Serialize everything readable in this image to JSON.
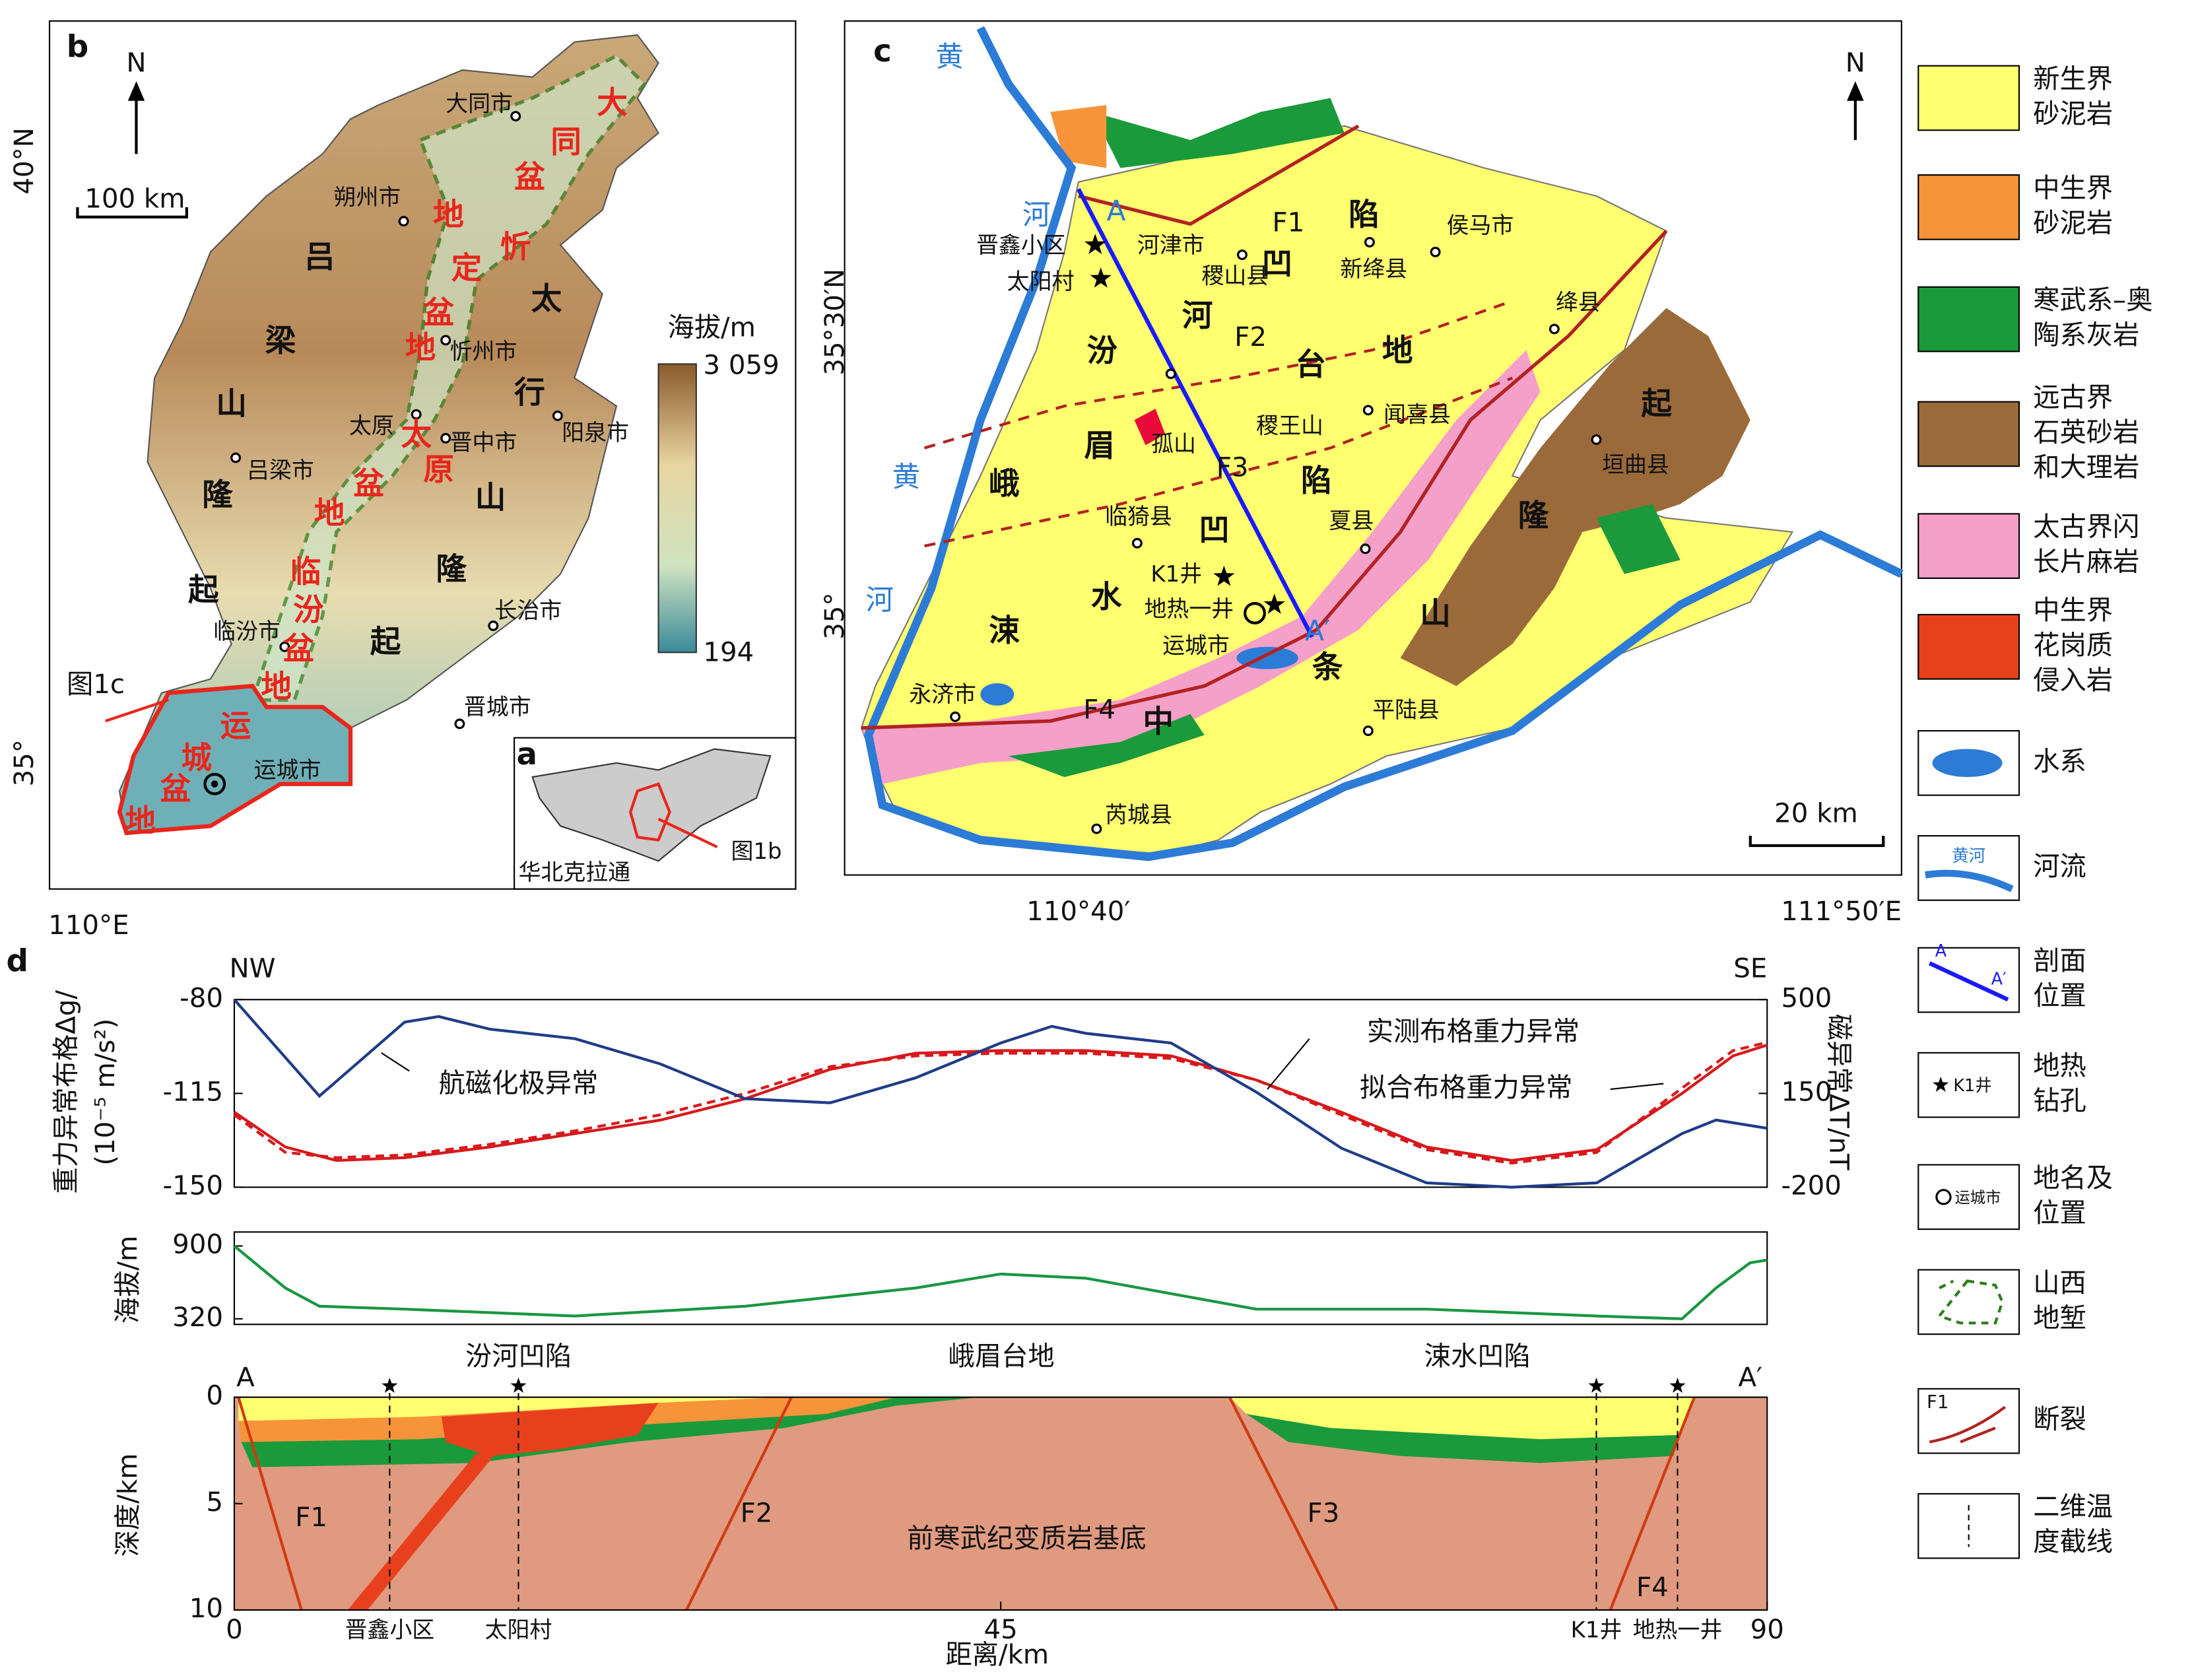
{
  "panel_b": {
    "label": "b",
    "north": "N",
    "scale": "100 km",
    "lat": [
      "40°N",
      "35°"
    ],
    "lon": "110°E",
    "colorbar": {
      "title": "海拔/m",
      "max": "3 059",
      "min": "194"
    },
    "fig_ref": "图1c",
    "places": [
      "大同市",
      "朔州市",
      "忻州市",
      "太原",
      "阳泉市",
      "晋中市",
      "吕梁市",
      "临汾市",
      "长治市",
      "晋城市",
      "运城市"
    ],
    "uplifts": [
      [
        "吕",
        "梁",
        "山",
        "隆",
        "起"
      ],
      [
        "太",
        "行",
        "山",
        "隆",
        "起"
      ]
    ],
    "basins": [
      [
        "大",
        "同",
        "盆",
        "地"
      ],
      [
        "忻",
        "定",
        "盆",
        "地"
      ],
      [
        "太",
        "原",
        "盆",
        "地"
      ],
      [
        "临",
        "汾",
        "盆",
        "地"
      ],
      [
        "运",
        "城",
        "盆",
        "地"
      ]
    ]
  },
  "panel_a": {
    "label": "a",
    "text": "华北克拉通",
    "fig_ref": "图1b"
  },
  "panel_c": {
    "label": "c",
    "north": "N",
    "scale": "20 km",
    "lat": [
      "35°30′N",
      "35°"
    ],
    "lon": [
      "110°40′",
      "111°50′E"
    ],
    "river": [
      [
        "黄",
        "河"
      ],
      [
        "黄",
        "河"
      ]
    ],
    "places": [
      "侯马市",
      "新绛县",
      "河津市",
      "稷山县",
      "绛县",
      "闻喜县",
      "稷王山",
      "孤山",
      "临猗县",
      "夏县",
      "垣曲县",
      "永济市",
      "运城市",
      "平陆县",
      "芮城县"
    ],
    "wells": [
      "晋鑫小区",
      "太阳村",
      "K1井",
      "地热一井"
    ],
    "section": [
      "A",
      "A′"
    ],
    "faults": [
      "F1",
      "F2",
      "F3",
      "F4"
    ],
    "units": [
      [
        "汾",
        "河",
        "凹",
        "陷"
      ],
      [
        "峨",
        "眉",
        "台",
        "地"
      ],
      [
        "涑",
        "水",
        "凹",
        "陷"
      ],
      [
        "中",
        "条",
        "山",
        "隆",
        "起"
      ]
    ]
  },
  "legend": {
    "items": [
      [
        "新生界",
        "砂泥岩"
      ],
      [
        "中生界",
        "砂泥岩"
      ],
      [
        "寒武系–奥",
        "陶系灰岩"
      ],
      [
        "远古界",
        "石英砂岩",
        "和大理岩"
      ],
      [
        "太古界闪",
        "长片麻岩"
      ],
      [
        "中生界",
        "花岗质",
        "侵入岩"
      ],
      [
        "水系"
      ],
      [
        "河流"
      ],
      [
        "剖面",
        "位置"
      ],
      [
        "地热",
        "钻孔"
      ],
      [
        "地名及",
        "位置"
      ],
      [
        "山西",
        "地堑"
      ],
      [
        "断裂"
      ],
      [
        "二维温",
        "度截线"
      ]
    ],
    "icons": {
      "river": "黄河",
      "section": [
        "A",
        "A′"
      ],
      "well": "K1井",
      "place": "运城市",
      "fault": "F1"
    }
  },
  "panel_d": {
    "label": "d",
    "ends": [
      "NW",
      "SE"
    ],
    "y_label": [
      "重力异常布格Δg/",
      "(10⁻⁵ m/s²)"
    ],
    "y2_label": "磁异常ΔT/nT",
    "x_label": "距离/km",
    "xlim": [
      0,
      90
    ],
    "xticks": [
      0,
      45,
      90
    ],
    "gravity": {
      "ylim": [
        -150,
        -80
      ],
      "yticks": [
        -80,
        -115,
        -150
      ],
      "y2lim": [
        -200,
        500
      ],
      "y2ticks": [
        500,
        150,
        -200
      ],
      "series": [
        {
          "name": "实测布格重力异常",
          "color": "#d7191c",
          "style": "solid",
          "axis": "y",
          "x": [
            0,
            3,
            6,
            10,
            15,
            20,
            25,
            30,
            35,
            40,
            45,
            50,
            55,
            60,
            65,
            70,
            75,
            80,
            85,
            88,
            90
          ],
          "values": [
            -122,
            -135,
            -140,
            -139,
            -135,
            -130,
            -125,
            -117,
            -106,
            -100,
            -99,
            -99,
            -101,
            -110,
            -122,
            -135,
            -140,
            -136,
            -115,
            -101,
            -97
          ]
        },
        {
          "name": "拟合布格重力异常",
          "color": "#d7191c",
          "style": "dashed",
          "axis": "y",
          "x": [
            0,
            3,
            6,
            10,
            15,
            20,
            25,
            30,
            35,
            40,
            45,
            50,
            55,
            60,
            65,
            70,
            75,
            80,
            85,
            88,
            90
          ],
          "values": [
            -123,
            -137,
            -139,
            -138,
            -134,
            -129,
            -123,
            -115,
            -105,
            -101,
            -100,
            -100,
            -102,
            -110,
            -123,
            -136,
            -141,
            -137,
            -113,
            -99,
            -96
          ]
        },
        {
          "name": "航磁化极异常",
          "color": "#1f3c88",
          "style": "solid",
          "axis": "y2",
          "x": [
            0,
            5,
            10,
            12,
            15,
            20,
            25,
            30,
            35,
            40,
            45,
            48,
            50,
            55,
            60,
            65,
            70,
            75,
            80,
            85,
            87,
            90
          ],
          "values": [
            500,
            140,
            416,
            437,
            390,
            354,
            260,
            130,
            115,
            208,
            338,
            400,
            374,
            338,
            155,
            -54,
            -184,
            -200,
            -184,
            0,
            51,
            20
          ]
        }
      ]
    },
    "elevation": {
      "y_label": "海拔/m",
      "ylim": [
        320,
        900
      ],
      "yticks": [
        900,
        320
      ],
      "color": "#1a9641",
      "x": [
        0,
        3,
        5,
        10,
        20,
        30,
        40,
        45,
        50,
        60,
        70,
        80,
        85,
        87,
        89,
        90
      ],
      "values": [
        900,
        565,
        420,
        397,
        342,
        420,
        565,
        677,
        643,
        397,
        397,
        342,
        320,
        565,
        766,
        788
      ]
    },
    "depth": {
      "y_label": "深度/km",
      "ylim": [
        0,
        10
      ],
      "yticks": [
        0,
        5,
        10
      ],
      "units": [
        "汾河凹陷",
        "峨眉台地",
        "涑水凹陷"
      ],
      "section": [
        "A",
        "A′"
      ],
      "faults": [
        "F1",
        "F2",
        "F3",
        "F4"
      ],
      "basement": "前寒武纪变质岩基底",
      "wells": [
        "晋鑫小区",
        "太阳村",
        "K1井",
        "地热一井"
      ]
    },
    "curve_labels": [
      "航磁化极异常",
      "实测布格重力异常",
      "拟合布格重力异常"
    ]
  }
}
